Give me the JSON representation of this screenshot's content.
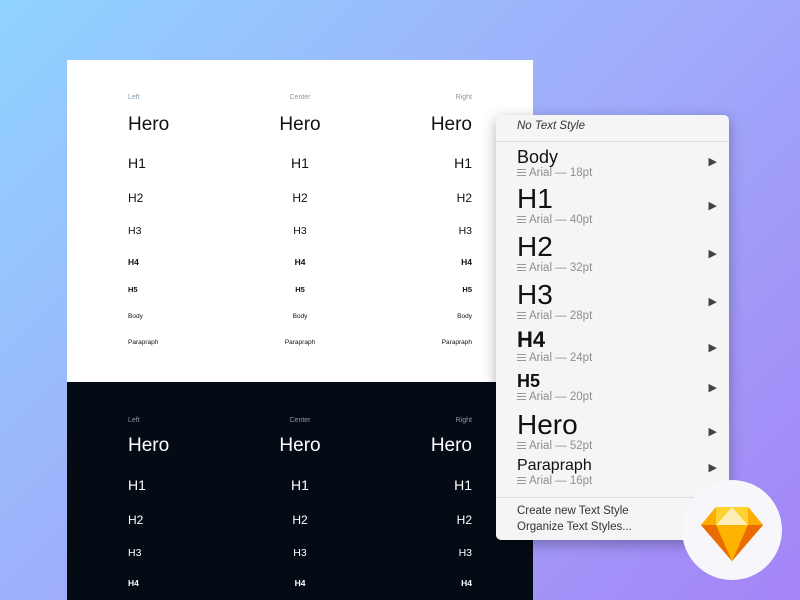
{
  "columns": [
    "Left",
    "Center",
    "Right"
  ],
  "white_rows": [
    "Hero",
    "H1",
    "H2",
    "H3",
    "H4",
    "H5",
    "Body",
    "Parapraph"
  ],
  "dark_rows": [
    "Hero",
    "H1",
    "H2",
    "H3",
    "H4"
  ],
  "menu": {
    "no_style": "No Text Style",
    "items": [
      {
        "name": "Body",
        "detail": "Arial — 18pt"
      },
      {
        "name": "H1",
        "detail": "Arial — 40pt"
      },
      {
        "name": "H2",
        "detail": "Arial — 32pt"
      },
      {
        "name": "H3",
        "detail": "Arial — 28pt"
      },
      {
        "name": "H4",
        "detail": "Arial — 24pt"
      },
      {
        "name": "H5",
        "detail": "Arial — 20pt"
      },
      {
        "name": "Hero",
        "detail": "Arial — 52pt"
      },
      {
        "name": "Parapraph",
        "detail": "Arial — 16pt"
      }
    ],
    "create": "Create new Text Style",
    "organize": "Organize Text Styles...",
    "arrow": "▶"
  },
  "icons": {
    "align": "align-center-icon",
    "logo": "sketch-logo",
    "submenu": "chevron-right-icon"
  },
  "colors": {
    "dark_artboard": "#040b15",
    "logo_orange": "#f7a600"
  }
}
